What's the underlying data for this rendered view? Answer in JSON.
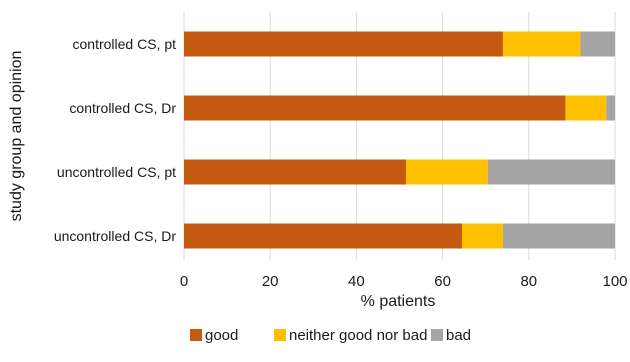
{
  "chart_data": {
    "type": "bar",
    "orientation": "horizontal",
    "stacked": true,
    "categories": [
      "controlled CS, pt",
      "controlled CS, Dr",
      "uncontrolled CS, pt",
      "uncontrolled CS, Dr"
    ],
    "series": [
      {
        "name": "good",
        "color": "#C55A11",
        "values": [
          74,
          88.5,
          51.5,
          64.5
        ]
      },
      {
        "name": "neither good nor bad",
        "color": "#FFC000",
        "values": [
          18,
          9.5,
          19,
          9.5
        ]
      },
      {
        "name": "bad",
        "color": "#A5A5A5",
        "values": [
          8,
          2,
          29.5,
          26
        ]
      }
    ],
    "xlabel": "% patients",
    "ylabel": "study group and opinion",
    "xlim": [
      0,
      100
    ],
    "x_ticks": [
      "0",
      "20",
      "40",
      "60",
      "80",
      "100"
    ],
    "grid": "vertical",
    "legend_position": "bottom"
  }
}
